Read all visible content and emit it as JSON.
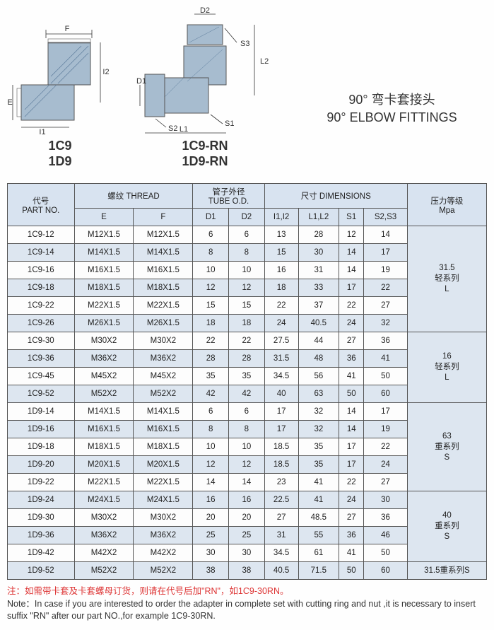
{
  "title_cn": "90°  弯卡套接头",
  "title_en": "90° ELBOW FITTINGS",
  "diagram1": {
    "labels": [
      "1C9",
      "1D9"
    ],
    "dims": {
      "E": "E",
      "F": "F",
      "I1": "I1",
      "I2": "I2"
    }
  },
  "diagram2": {
    "labels": [
      "1C9-RN",
      "1D9-RN"
    ],
    "dims": {
      "D1": "D1",
      "D2": "D2",
      "L1": "L1",
      "L2": "L2",
      "S1": "S1",
      "S2": "S2",
      "S3": "S3"
    }
  },
  "headers": {
    "part_no_cn": "代号",
    "part_no_en": "PART NO.",
    "thread_cn": "螺纹",
    "thread_en": "THREAD",
    "tube_cn": "管子外径",
    "tube_en": "TUBE O.D.",
    "dim_cn": "尺寸",
    "dim_en": "DIMENSIONS",
    "pressure_cn": "压力等级",
    "pressure_en": "Mpa",
    "E": "E",
    "F": "F",
    "D1": "D1",
    "D2": "D2",
    "I12": "I1,I2",
    "L12": "L1,L2",
    "S1": "S1",
    "S23": "S2,S3"
  },
  "groups": [
    {
      "pressure_lines": [
        "31.5",
        "轻系列",
        "L"
      ],
      "rows": [
        [
          "1C9-12",
          "M12X1.5",
          "M12X1.5",
          "6",
          "6",
          "13",
          "28",
          "12",
          "14"
        ],
        [
          "1C9-14",
          "M14X1.5",
          "M14X1.5",
          "8",
          "8",
          "15",
          "30",
          "14",
          "17"
        ],
        [
          "1C9-16",
          "M16X1.5",
          "M16X1.5",
          "10",
          "10",
          "16",
          "31",
          "14",
          "19"
        ],
        [
          "1C9-18",
          "M18X1.5",
          "M18X1.5",
          "12",
          "12",
          "18",
          "33",
          "17",
          "22"
        ],
        [
          "1C9-22",
          "M22X1.5",
          "M22X1.5",
          "15",
          "15",
          "22",
          "37",
          "22",
          "27"
        ],
        [
          "1C9-26",
          "M26X1.5",
          "M26X1.5",
          "18",
          "18",
          "24",
          "40.5",
          "24",
          "32"
        ]
      ]
    },
    {
      "pressure_lines": [
        "16",
        "轻系列",
        "L"
      ],
      "rows": [
        [
          "1C9-30",
          "M30X2",
          "M30X2",
          "22",
          "22",
          "27.5",
          "44",
          "27",
          "36"
        ],
        [
          "1C9-36",
          "M36X2",
          "M36X2",
          "28",
          "28",
          "31.5",
          "48",
          "36",
          "41"
        ],
        [
          "1C9-45",
          "M45X2",
          "M45X2",
          "35",
          "35",
          "34.5",
          "56",
          "41",
          "50"
        ],
        [
          "1C9-52",
          "M52X2",
          "M52X2",
          "42",
          "42",
          "40",
          "63",
          "50",
          "60"
        ]
      ]
    },
    {
      "pressure_lines": [
        "63",
        "重系列",
        "S"
      ],
      "rows": [
        [
          "1D9-14",
          "M14X1.5",
          "M14X1.5",
          "6",
          "6",
          "17",
          "32",
          "14",
          "17"
        ],
        [
          "1D9-16",
          "M16X1.5",
          "M16X1.5",
          "8",
          "8",
          "17",
          "32",
          "14",
          "19"
        ],
        [
          "1D9-18",
          "M18X1.5",
          "M18X1.5",
          "10",
          "10",
          "18.5",
          "35",
          "17",
          "22"
        ],
        [
          "1D9-20",
          "M20X1.5",
          "M20X1.5",
          "12",
          "12",
          "18.5",
          "35",
          "17",
          "24"
        ],
        [
          "1D9-22",
          "M22X1.5",
          "M22X1.5",
          "14",
          "14",
          "23",
          "41",
          "22",
          "27"
        ]
      ]
    },
    {
      "pressure_lines": [
        "40",
        "重系列",
        "S"
      ],
      "rows": [
        [
          "1D9-24",
          "M24X1.5",
          "M24X1.5",
          "16",
          "16",
          "22.5",
          "41",
          "24",
          "30"
        ],
        [
          "1D9-30",
          "M30X2",
          "M30X2",
          "20",
          "20",
          "27",
          "48.5",
          "27",
          "36"
        ],
        [
          "1D9-36",
          "M36X2",
          "M36X2",
          "25",
          "25",
          "31",
          "55",
          "36",
          "46"
        ],
        [
          "1D9-42",
          "M42X2",
          "M42X2",
          "30",
          "30",
          "34.5",
          "61",
          "41",
          "50"
        ]
      ]
    },
    {
      "pressure_lines": [
        "31.5重系列S"
      ],
      "rows": [
        [
          "1D9-52",
          "M52X2",
          "M52X2",
          "38",
          "38",
          "40.5",
          "71.5",
          "50",
          "60"
        ]
      ]
    }
  ],
  "note_cn": "注：如需带卡套及卡套螺母订货，则请在代号后加\"RN\"，如1C9-30RN。",
  "note_en": "Note：In case if you are interested to order the adapter in complete set with cutting ring and nut ,it is necessary to insert suffix \"RN\" after our part NO.,for example 1C9-30RN.",
  "colors": {
    "header_bg": "#d8e3f0",
    "row_even_bg": "#dde6f0",
    "row_odd_bg": "#fdfdfd",
    "border": "#555555",
    "fitting_fill": "#a7bccf",
    "hatch": "#5a7a9a"
  }
}
